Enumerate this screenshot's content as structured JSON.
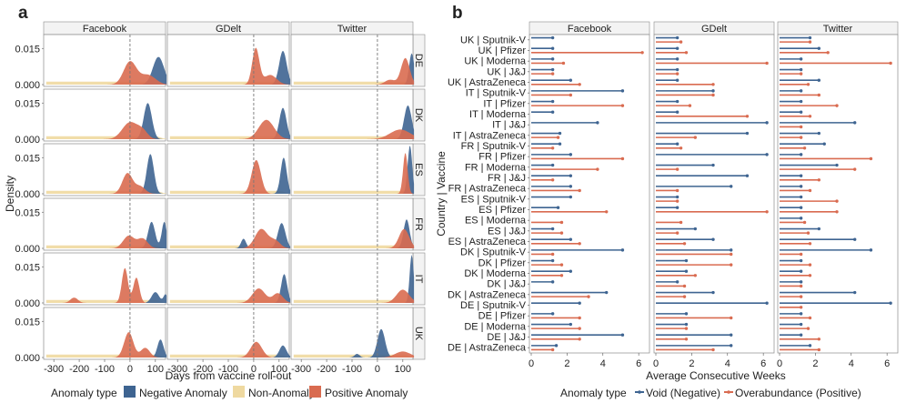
{
  "chart_data": [
    {
      "panel_label": "a",
      "type": "area",
      "title": "",
      "xlabel": "Days from vaccine roll-out",
      "ylabel": "Density",
      "xlim": [
        -340,
        140
      ],
      "ylim": [
        0,
        0.02
      ],
      "x_ticks": [
        -300,
        -200,
        -100,
        0,
        100
      ],
      "x_tick_labels": [
        "-300",
        "-200",
        "-100",
        "0",
        "100"
      ],
      "y_ticks": [
        0,
        0.015
      ],
      "y_tick_labels": [
        "0.000",
        "0.015"
      ],
      "vline_at": 0,
      "columns": [
        "Facebook",
        "GDelt",
        "Twitter"
      ],
      "rows": [
        "DE",
        "DK",
        "ES",
        "FR",
        "IT",
        "UK"
      ],
      "legend": {
        "title": "Anomaly type",
        "entries": [
          "Negative Anomaly",
          "Non-Anomaly",
          "Positive Anomaly"
        ],
        "colors": [
          "#3e6491",
          "#efd9a0",
          "#d96b50"
        ]
      },
      "series_peaks": {
        "DE": {
          "Facebook": {
            "Negative Anomaly": [
              [
                112,
                0.0115,
                22
              ]
            ],
            "Non-Anomaly": [
              [
                -150,
                0.0012,
                180
              ]
            ],
            "Positive Anomaly": [
              [
                0,
                0.0095,
                25
              ],
              [
                70,
                0.004,
                30
              ]
            ]
          },
          "GDelt": {
            "Negative Anomaly": [
              [
                115,
                0.014,
                15
              ]
            ],
            "Non-Anomaly": [
              [
                -150,
                0.0012,
                180
              ]
            ],
            "Positive Anomaly": [
              [
                8,
                0.015,
                14
              ],
              [
                65,
                0.004,
                25
              ]
            ]
          },
          "Twitter": {
            "Negative Anomaly": [
              [
                135,
                0.013,
                10
              ]
            ],
            "Non-Anomaly": [
              [
                -150,
                0.0012,
                180
              ]
            ],
            "Positive Anomaly": [
              [
                110,
                0.011,
                17
              ],
              [
                50,
                0.002,
                20
              ]
            ]
          }
        },
        "DK": {
          "Facebook": {
            "Negative Anomaly": [
              [
                70,
                0.015,
                16
              ]
            ],
            "Non-Anomaly": [
              [
                -150,
                0.0012,
                180
              ]
            ],
            "Positive Anomaly": [
              [
                0,
                0.007,
                30
              ],
              [
                50,
                0.003,
                20
              ]
            ]
          },
          "GDelt": {
            "Negative Anomaly": [
              [
                115,
                0.013,
                14
              ]
            ],
            "Non-Anomaly": [
              [
                -150,
                0.0012,
                180
              ]
            ],
            "Positive Anomaly": [
              [
                50,
                0.008,
                30
              ]
            ]
          },
          "Twitter": {
            "Negative Anomaly": [
              [
                120,
                0.014,
                15
              ]
            ],
            "Non-Anomaly": [
              [
                -150,
                0.0012,
                180
              ]
            ],
            "Positive Anomaly": [
              [
                90,
                0.004,
                40
              ]
            ]
          }
        },
        "ES": {
          "Facebook": {
            "Negative Anomaly": [
              [
                80,
                0.0165,
                14
              ]
            ],
            "Non-Anomaly": [
              [
                -150,
                0.0012,
                180
              ]
            ],
            "Positive Anomaly": [
              [
                -10,
                0.0085,
                20
              ],
              [
                40,
                0.003,
                20
              ]
            ]
          },
          "GDelt": {
            "Negative Anomaly": [
              [
                118,
                0.015,
                12
              ]
            ],
            "Non-Anomaly": [
              [
                -150,
                0.0012,
                180
              ]
            ],
            "Positive Anomaly": [
              [
                10,
                0.014,
                18
              ]
            ]
          },
          "Twitter": {
            "Negative Anomaly": [
              [
                128,
                0.02,
                9
              ]
            ],
            "Non-Anomaly": [
              [
                -150,
                0.0012,
                180
              ]
            ],
            "Positive Anomaly": [
              [
                110,
                0.017,
                9
              ]
            ]
          }
        },
        "FR": {
          "Facebook": {
            "Negative Anomaly": [
              [
                85,
                0.011,
                14
              ],
              [
                135,
                0.011,
                10
              ]
            ],
            "Non-Anomaly": [
              [
                -150,
                0.0012,
                180
              ]
            ],
            "Positive Anomaly": [
              [
                -5,
                0.0052,
                22
              ],
              [
                50,
                0.004,
                20
              ]
            ]
          },
          "GDelt": {
            "Negative Anomaly": [
              [
                110,
                0.0105,
                15
              ],
              [
                -40,
                0.004,
                10
              ]
            ],
            "Non-Anomaly": [
              [
                -150,
                0.0012,
                180
              ]
            ],
            "Positive Anomaly": [
              [
                30,
                0.008,
                25
              ],
              [
                85,
                0.003,
                20
              ]
            ]
          },
          "Twitter": {
            "Negative Anomaly": [
              [
                115,
                0.012,
                12
              ]
            ],
            "Non-Anomaly": [
              [
                -150,
                0.0012,
                180
              ]
            ],
            "Positive Anomaly": [
              [
                105,
                0.008,
                20
              ]
            ]
          }
        },
        "IT": {
          "Facebook": {
            "Negative Anomaly": [
              [
                100,
                0.0045,
                15
              ],
              [
                140,
                0.0035,
                8
              ]
            ],
            "Non-Anomaly": [
              [
                -150,
                0.0012,
                180
              ]
            ],
            "Positive Anomaly": [
              [
                -20,
                0.0145,
                12
              ],
              [
                25,
                0.0105,
                12
              ],
              [
                -220,
                0.0022,
                15
              ]
            ]
          },
          "GDelt": {
            "Negative Anomaly": [
              [
                120,
                0.012,
                12
              ]
            ],
            "Non-Anomaly": [
              [
                -150,
                0.0012,
                180
              ]
            ],
            "Positive Anomaly": [
              [
                20,
                0.006,
                25
              ],
              [
                95,
                0.004,
                20
              ]
            ]
          },
          "Twitter": {
            "Negative Anomaly": [
              [
                135,
                0.02,
                8
              ]
            ],
            "Non-Anomaly": [
              [
                -150,
                0.0012,
                180
              ]
            ],
            "Positive Anomaly": [
              [
                100,
                0.0055,
                25
              ]
            ]
          }
        },
        "UK": {
          "Facebook": {
            "Negative Anomaly": [
              [
                120,
                0.0075,
                12
              ]
            ],
            "Non-Anomaly": [
              [
                -150,
                0.0012,
                180
              ]
            ],
            "Positive Anomaly": [
              [
                -5,
                0.0105,
                18
              ],
              [
                60,
                0.004,
                18
              ]
            ]
          },
          "GDelt": {
            "Negative Anomaly": [
              [
                115,
                0.005,
                14
              ]
            ],
            "Non-Anomaly": [
              [
                -150,
                0.0012,
                180
              ]
            ],
            "Positive Anomaly": [
              [
                10,
                0.0065,
                22
              ]
            ]
          },
          "Twitter": {
            "Negative Anomaly": [
              [
                15,
                0.0118,
                15
              ],
              [
                -80,
                0.0015,
                10
              ]
            ],
            "Non-Anomaly": [
              [
                -150,
                0.0012,
                180
              ]
            ],
            "Positive Anomaly": [
              [
                100,
                0.0025,
                30
              ]
            ]
          }
        }
      }
    },
    {
      "panel_label": "b",
      "type": "bar",
      "orientation": "horizontal-lollipop",
      "title": "",
      "xlabel": "Average Consecutive Weeks",
      "ylabel": "Country | Vaccine",
      "xlim": [
        0,
        6.5
      ],
      "x_ticks": [
        0,
        2,
        4,
        6
      ],
      "x_tick_labels": [
        "0",
        "2",
        "4",
        "6"
      ],
      "columns": [
        "Facebook",
        "GDelt",
        "Twitter"
      ],
      "categories": [
        "UK | Sputnik-V",
        "UK | Pfizer",
        "UK | Moderna",
        "UK | J&J",
        "UK | AstraZeneca",
        "IT | Sputnik-V",
        "IT | Pfizer",
        "IT | Moderna",
        "IT | J&J",
        "IT | AstraZeneca",
        "FR | Sputnik-V",
        "FR | Pfizer",
        "FR | Moderna",
        "FR | J&J",
        "FR | AstraZeneca",
        "ES | Sputnik-V",
        "ES | Pfizer",
        "ES | Moderna",
        "ES | J&J",
        "ES | AstraZeneca",
        "DK | Sputnik-V",
        "DK | Pfizer",
        "DK | Moderna",
        "DK | J&J",
        "DK | AstraZeneca",
        "DE | Sputnik-V",
        "DE | Pfizer",
        "DE | Moderna",
        "DE | J&J",
        "DE | AstraZeneca"
      ],
      "legend": {
        "title": "Anomaly type",
        "entries": [
          "Void (Negative)",
          "Overabundance (Positive)"
        ],
        "colors": [
          "#3e6491",
          "#d96b50"
        ]
      },
      "series": [
        {
          "name": "Void (Negative)",
          "column": "Facebook",
          "values": [
            1.2,
            1.2,
            1.2,
            1.2,
            2.2,
            5.1,
            1.2,
            1.2,
            3.7,
            1.6,
            1.6,
            2.2,
            1.2,
            2.2,
            2.2,
            2.2,
            1.5,
            0,
            1.2,
            2.2,
            5.1,
            1.2,
            2.2,
            1.2,
            4.2,
            2.7,
            1.2,
            2.2,
            5.1,
            1.4
          ]
        },
        {
          "name": "Overabundance (Positive)",
          "column": "Facebook",
          "values": [
            0,
            6.2,
            1.8,
            1.2,
            2.7,
            2.2,
            5.1,
            0,
            0,
            1.5,
            1.2,
            5.1,
            3.7,
            1.2,
            2.7,
            0,
            4.2,
            1.7,
            1.7,
            2.7,
            1.2,
            1.7,
            1.7,
            0,
            3.2,
            0,
            2.7,
            2.7,
            2.7,
            1.2
          ]
        },
        {
          "name": "Void (Negative)",
          "column": "GDelt",
          "values": [
            1.2,
            1.2,
            1.2,
            1.2,
            1.2,
            3.2,
            1.2,
            1.2,
            6.2,
            5.1,
            1.2,
            6.2,
            3.2,
            5.1,
            4.2,
            1.2,
            1.2,
            0,
            2.2,
            3.2,
            4.2,
            1.7,
            1.7,
            1.2,
            3.2,
            6.2,
            1.7,
            1.7,
            4.2,
            4.2
          ]
        },
        {
          "name": "Overabundance (Positive)",
          "column": "GDelt",
          "values": [
            1.4,
            1.7,
            6.2,
            1.2,
            3.2,
            3.2,
            1.9,
            5.1,
            0,
            2.2,
            1.4,
            0,
            1.2,
            0,
            1.2,
            1.2,
            6.2,
            1.4,
            1.2,
            1.6,
            4.2,
            4.2,
            2.2,
            1.6,
            1.6,
            0,
            4.2,
            1.7,
            1.7,
            3.2
          ]
        },
        {
          "name": "Void (Negative)",
          "column": "Twitter",
          "values": [
            1.7,
            2.2,
            1.2,
            1.2,
            2.2,
            1.2,
            1.2,
            1.2,
            4.2,
            2.2,
            2.5,
            1.2,
            3.2,
            1.2,
            1.2,
            1.2,
            1.2,
            1.2,
            2.2,
            4.2,
            5.1,
            1.2,
            1.2,
            1.2,
            4.2,
            6.2,
            1.2,
            1.2,
            1.2,
            1.7
          ]
        },
        {
          "name": "Overabundance (Positive)",
          "column": "Twitter",
          "values": [
            1.7,
            2.7,
            6.2,
            1.2,
            1.6,
            2.2,
            3.2,
            1.7,
            1.2,
            1.2,
            1.4,
            5.1,
            4.2,
            2.2,
            1.7,
            3.2,
            3.2,
            1.4,
            1.6,
            1.7,
            1.2,
            1.7,
            1.7,
            1.2,
            1.2,
            1.2,
            1.7,
            1.6,
            2.2,
            2.2
          ]
        }
      ]
    }
  ]
}
